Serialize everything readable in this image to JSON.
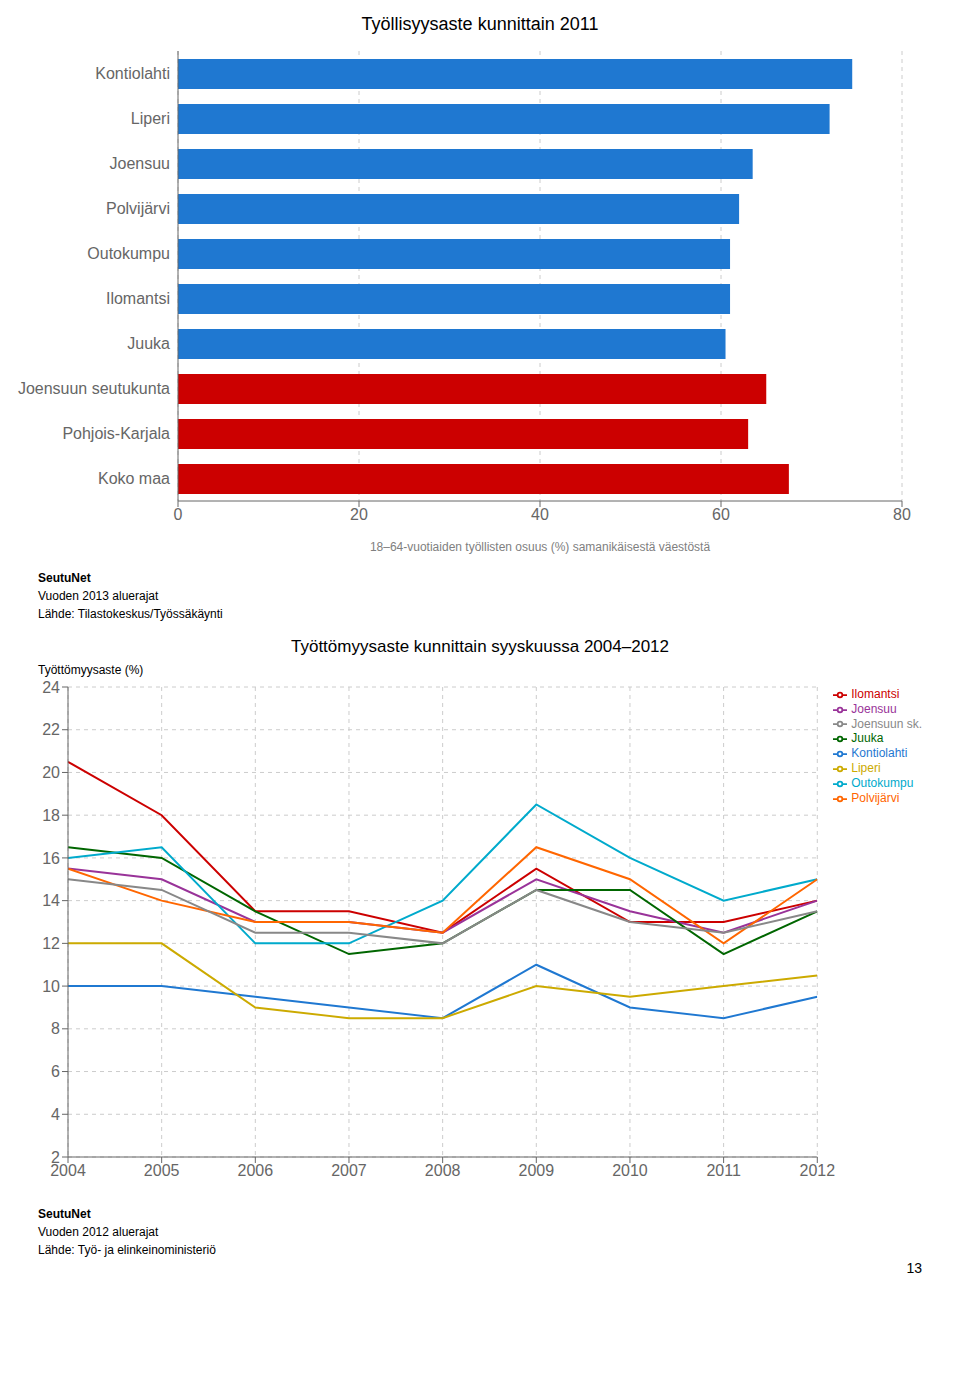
{
  "chart_data": [
    {
      "type": "bar",
      "title": "Työllisyysaste kunnittain 2011",
      "orientation": "horizontal",
      "categories": [
        "Kontiolahti",
        "Liperi",
        "Joensuu",
        "Polvijärvi",
        "Outokumpu",
        "Ilomantsi",
        "Juuka",
        "Joensuun seutukunta",
        "Pohjois-Karjala",
        "Koko maa"
      ],
      "values": [
        74.5,
        72.0,
        63.5,
        62.0,
        61.0,
        61.0,
        60.5,
        65.0,
        63.0,
        67.5
      ],
      "colors": [
        "#1f78d1",
        "#1f78d1",
        "#1f78d1",
        "#1f78d1",
        "#1f78d1",
        "#1f78d1",
        "#1f78d1",
        "#cc0000",
        "#cc0000",
        "#cc0000"
      ],
      "xlabel": "18–64-vuotiaiden työllisten osuus (%) samanikäisestä väestöstä",
      "xlim": [
        0,
        80
      ],
      "xticks": [
        0,
        20,
        40,
        60,
        80
      ],
      "grid": true,
      "annotations": [
        "SeutuNet",
        "Vuoden 2013 aluerajat",
        "Lähde: Tilastokeskus/Työssäkäynti"
      ]
    },
    {
      "type": "line",
      "title": "Työttömyysaste kunnittain syyskuussa 2004–2012",
      "ylabel": "Työttömyysaste (%)",
      "x": [
        2004,
        2005,
        2006,
        2007,
        2008,
        2009,
        2010,
        2011,
        2012
      ],
      "xlim": [
        2004,
        2012
      ],
      "xticks": [
        2004,
        2005,
        2006,
        2007,
        2008,
        2009,
        2010,
        2011,
        2012
      ],
      "ylim": [
        2,
        24
      ],
      "yticks": [
        2,
        4,
        6,
        8,
        10,
        12,
        14,
        16,
        18,
        20,
        22,
        24
      ],
      "grid": true,
      "legend": "right",
      "series": [
        {
          "name": "Ilomantsi",
          "color": "#cc0000",
          "values": [
            20.5,
            18.0,
            13.5,
            13.5,
            12.5,
            15.5,
            13.0,
            13.0,
            14.0
          ]
        },
        {
          "name": "Joensuu",
          "color": "#993399",
          "values": [
            15.5,
            15.0,
            13.0,
            13.0,
            12.5,
            15.0,
            13.5,
            12.5,
            14.0
          ]
        },
        {
          "name": "Juuka",
          "color": "#006600",
          "values": [
            16.5,
            16.0,
            13.5,
            11.5,
            12.0,
            14.5,
            14.5,
            11.5,
            13.5
          ]
        },
        {
          "name": "Kontiolahti",
          "color": "#1f78d1",
          "values": [
            10.0,
            10.0,
            9.5,
            9.0,
            8.5,
            11.0,
            9.0,
            8.5,
            9.5
          ]
        },
        {
          "name": "Liperi",
          "color": "#ccaa00",
          "values": [
            12.0,
            12.0,
            9.0,
            8.5,
            8.5,
            10.0,
            9.5,
            10.0,
            10.5
          ]
        },
        {
          "name": "Outokumpu",
          "color": "#00aacc",
          "values": [
            16.0,
            16.5,
            12.0,
            12.0,
            14.0,
            18.5,
            16.0,
            14.0,
            15.0
          ]
        },
        {
          "name": "Polvijärvi",
          "color": "#ff6600",
          "values": [
            15.5,
            14.0,
            13.0,
            13.0,
            12.5,
            16.5,
            15.0,
            12.0,
            15.0
          ]
        },
        {
          "name": "Joensuun sk.",
          "color": "#888888",
          "values": [
            15.0,
            14.5,
            12.5,
            12.5,
            12.0,
            14.5,
            13.0,
            12.5,
            13.5
          ]
        }
      ],
      "annotations": [
        "SeutuNet",
        "Vuoden 2012 aluerajat",
        "Lähde: Työ- ja elinkeinoministeriö",
        "13"
      ]
    }
  ]
}
